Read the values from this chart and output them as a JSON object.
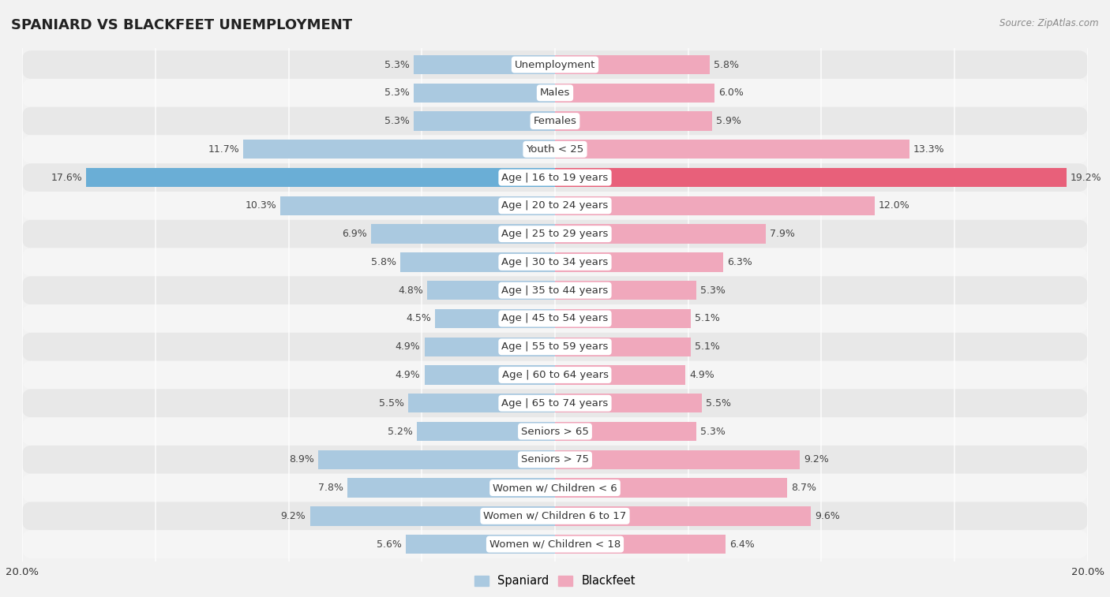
{
  "title": "SPANIARD VS BLACKFEET UNEMPLOYMENT",
  "source": "Source: ZipAtlas.com",
  "categories": [
    "Unemployment",
    "Males",
    "Females",
    "Youth < 25",
    "Age | 16 to 19 years",
    "Age | 20 to 24 years",
    "Age | 25 to 29 years",
    "Age | 30 to 34 years",
    "Age | 35 to 44 years",
    "Age | 45 to 54 years",
    "Age | 55 to 59 years",
    "Age | 60 to 64 years",
    "Age | 65 to 74 years",
    "Seniors > 65",
    "Seniors > 75",
    "Women w/ Children < 6",
    "Women w/ Children 6 to 17",
    "Women w/ Children < 18"
  ],
  "spaniard": [
    5.3,
    5.3,
    5.3,
    11.7,
    17.6,
    10.3,
    6.9,
    5.8,
    4.8,
    4.5,
    4.9,
    4.9,
    5.5,
    5.2,
    8.9,
    7.8,
    9.2,
    5.6
  ],
  "blackfeet": [
    5.8,
    6.0,
    5.9,
    13.3,
    19.2,
    12.0,
    7.9,
    6.3,
    5.3,
    5.1,
    5.1,
    4.9,
    5.5,
    5.3,
    9.2,
    8.7,
    9.6,
    6.4
  ],
  "spaniard_color": "#aac9e0",
  "blackfeet_color": "#f0a8bc",
  "highlight_spaniard_color": "#6aaed6",
  "highlight_blackfeet_color": "#e8607a",
  "xlim": 20.0,
  "bar_height": 0.68,
  "bg_color": "#f2f2f2",
  "row_color_even": "#e8e8e8",
  "row_color_odd": "#f5f5f5",
  "label_fontsize": 9.5,
  "title_fontsize": 13,
  "value_fontsize": 9,
  "legend_spaniard": "Spaniard",
  "legend_blackfeet": "Blackfeet",
  "x_axis_label_left": "20.0%",
  "x_axis_label_right": "20.0%"
}
